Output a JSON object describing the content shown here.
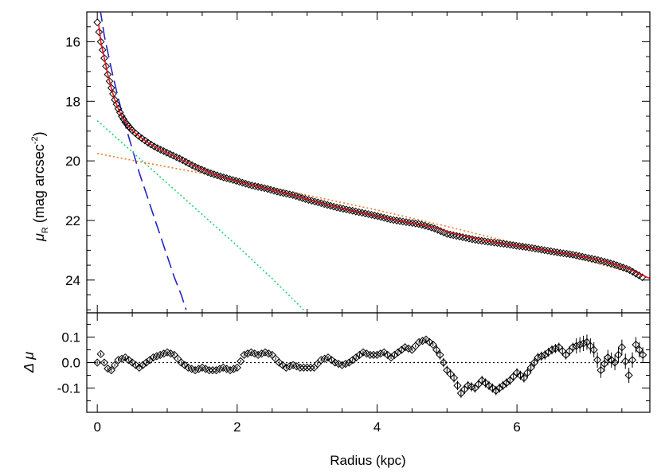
{
  "chart_data": [
    {
      "panel": "profile",
      "type": "scatter",
      "xlabel": "",
      "ylabel_main": "μ",
      "ylabel_sub": "R",
      "ylabel_units": "(mag arcsec",
      "ylabel_exp": "-2",
      "ylabel_close": ")",
      "xlim": [
        -0.15,
        7.9
      ],
      "ylim": [
        25.1,
        15.0
      ],
      "y_inverted": true,
      "x_ticks": [
        0,
        2,
        4,
        6
      ],
      "y_ticks": [
        16,
        18,
        20,
        22,
        24
      ],
      "y_tick_labels": [
        "16",
        "18",
        "20",
        "22",
        "24"
      ],
      "grid": false,
      "colors": {
        "data": "#000000",
        "total_fit": "#e8101b",
        "bulge": "#2323c8",
        "inner_component": "#22d26a",
        "disk": "#f07828"
      },
      "series": [
        {
          "role": "data",
          "style": "diamond markers with error bars",
          "x": [
            0.0,
            0.05,
            0.1,
            0.15,
            0.2,
            0.25,
            0.3,
            0.35,
            0.4,
            0.5,
            0.6,
            0.7,
            0.8,
            0.9,
            1.0,
            1.2,
            1.4,
            1.6,
            1.8,
            2.0,
            2.2,
            2.4,
            2.6,
            2.8,
            3.0,
            3.2,
            3.4,
            3.6,
            3.8,
            4.0,
            4.2,
            4.4,
            4.6,
            4.8,
            5.0,
            5.2,
            5.4,
            5.6,
            5.8,
            6.0,
            6.2,
            6.4,
            6.6,
            6.8,
            7.0,
            7.2,
            7.4,
            7.6,
            7.8
          ],
          "y": [
            15.35,
            16.0,
            16.55,
            17.1,
            17.55,
            17.95,
            18.25,
            18.5,
            18.7,
            18.98,
            19.18,
            19.35,
            19.5,
            19.62,
            19.73,
            19.95,
            20.2,
            20.4,
            20.55,
            20.68,
            20.82,
            20.92,
            21.05,
            21.15,
            21.3,
            21.42,
            21.55,
            21.65,
            21.75,
            21.85,
            21.97,
            22.05,
            22.12,
            22.25,
            22.45,
            22.55,
            22.65,
            22.72,
            22.78,
            22.85,
            22.92,
            23.0,
            23.08,
            23.15,
            23.25,
            23.35,
            23.48,
            23.65,
            23.92
          ]
        },
        {
          "role": "total-fit",
          "style": "solid red line",
          "x": [
            0.02,
            0.05,
            0.1,
            0.15,
            0.2,
            0.25,
            0.3,
            0.35,
            0.4,
            0.5,
            0.6,
            0.7,
            0.8,
            0.9,
            1.0,
            1.2,
            1.4,
            1.6,
            1.8,
            2.0,
            2.4,
            2.8,
            3.2,
            3.6,
            4.0,
            4.4,
            4.8,
            5.2,
            5.6,
            6.0,
            6.4,
            6.8,
            7.2,
            7.6,
            7.9
          ],
          "y": [
            15.4,
            16.0,
            16.55,
            17.1,
            17.55,
            17.95,
            18.25,
            18.5,
            18.7,
            18.98,
            19.18,
            19.35,
            19.5,
            19.62,
            19.73,
            19.95,
            20.18,
            20.38,
            20.55,
            20.68,
            20.92,
            21.15,
            21.42,
            21.65,
            21.85,
            22.05,
            22.22,
            22.5,
            22.7,
            22.85,
            23.0,
            23.15,
            23.33,
            23.62,
            23.95
          ]
        },
        {
          "role": "bulge",
          "style": "long-dashed blue line",
          "x": [
            0.04,
            0.1,
            0.2,
            0.3,
            0.4,
            0.5,
            0.6,
            0.7,
            0.8,
            0.9,
            1.0,
            1.1,
            1.2,
            1.27
          ],
          "y": [
            14.9,
            15.8,
            16.9,
            17.9,
            18.8,
            19.6,
            20.4,
            21.1,
            21.8,
            22.5,
            23.2,
            23.9,
            24.5,
            25.0
          ]
        },
        {
          "role": "inner-component",
          "style": "dotted green line",
          "x": [
            0.0,
            0.5,
            1.0,
            1.5,
            2.0,
            2.5,
            2.95
          ],
          "y": [
            18.65,
            19.7,
            20.75,
            21.8,
            22.85,
            23.95,
            25.0
          ]
        },
        {
          "role": "disk",
          "style": "dotted orange line",
          "x": [
            0.0,
            0.5,
            1.0,
            1.5,
            2.0,
            2.5,
            3.0,
            4.0,
            5.0,
            6.0,
            7.0,
            7.9
          ],
          "y": [
            19.75,
            19.98,
            20.2,
            20.42,
            20.66,
            20.9,
            21.15,
            21.65,
            22.2,
            22.78,
            23.35,
            23.92
          ]
        }
      ]
    },
    {
      "panel": "residuals",
      "type": "scatter",
      "xlabel": "Radius (kpc)",
      "ylabel": "Δ μ",
      "xlim": [
        -0.15,
        7.9
      ],
      "ylim": [
        -0.195,
        0.195
      ],
      "x_ticks": [
        0,
        2,
        4,
        6
      ],
      "x_tick_labels": [
        "0",
        "2",
        "4",
        "6"
      ],
      "y_ticks": [
        0.1,
        0.0,
        -0.1
      ],
      "y_tick_labels": [
        "0.1",
        "0.0",
        "-0.1"
      ],
      "zero_line": 0.0,
      "grid": false,
      "series": [
        {
          "role": "residual",
          "style": "diamond markers with error bars",
          "x": [
            0.0,
            0.06,
            0.12,
            0.2,
            0.3,
            0.4,
            0.5,
            0.6,
            0.7,
            0.8,
            0.9,
            1.0,
            1.1,
            1.2,
            1.3,
            1.4,
            1.5,
            1.6,
            1.7,
            1.8,
            1.9,
            2.0,
            2.1,
            2.2,
            2.3,
            2.4,
            2.5,
            2.6,
            2.7,
            2.8,
            2.9,
            3.0,
            3.1,
            3.2,
            3.3,
            3.4,
            3.5,
            3.6,
            3.7,
            3.8,
            3.9,
            4.0,
            4.1,
            4.2,
            4.3,
            4.4,
            4.5,
            4.6,
            4.7,
            4.8,
            4.9,
            5.0,
            5.1,
            5.2,
            5.3,
            5.4,
            5.5,
            5.6,
            5.7,
            5.8,
            5.9,
            6.0,
            6.1,
            6.2,
            6.3,
            6.4,
            6.5,
            6.6,
            6.7,
            6.8,
            6.9,
            7.0,
            7.1,
            7.2,
            7.3,
            7.4,
            7.5,
            7.6,
            7.7,
            7.8
          ],
          "y": [
            0.0,
            0.04,
            -0.02,
            -0.03,
            0.01,
            0.02,
            0.0,
            -0.02,
            0.0,
            0.02,
            0.03,
            0.04,
            0.03,
            0.0,
            -0.02,
            -0.03,
            -0.02,
            -0.03,
            -0.03,
            -0.02,
            -0.03,
            -0.02,
            0.03,
            0.04,
            0.03,
            0.04,
            0.03,
            0.0,
            -0.02,
            -0.01,
            -0.02,
            -0.02,
            -0.02,
            0.01,
            0.02,
            0.0,
            -0.01,
            0.0,
            0.02,
            0.04,
            0.03,
            0.03,
            0.04,
            0.02,
            0.04,
            0.06,
            0.05,
            0.08,
            0.09,
            0.07,
            0.03,
            -0.03,
            -0.06,
            -0.12,
            -0.09,
            -0.1,
            -0.07,
            -0.09,
            -0.11,
            -0.09,
            -0.07,
            -0.04,
            -0.06,
            -0.02,
            0.02,
            0.03,
            0.05,
            0.06,
            0.03,
            0.06,
            0.07,
            0.08,
            0.05,
            -0.03,
            0.02,
            0.0,
            0.06,
            -0.05,
            0.07,
            0.03
          ]
        }
      ]
    }
  ]
}
